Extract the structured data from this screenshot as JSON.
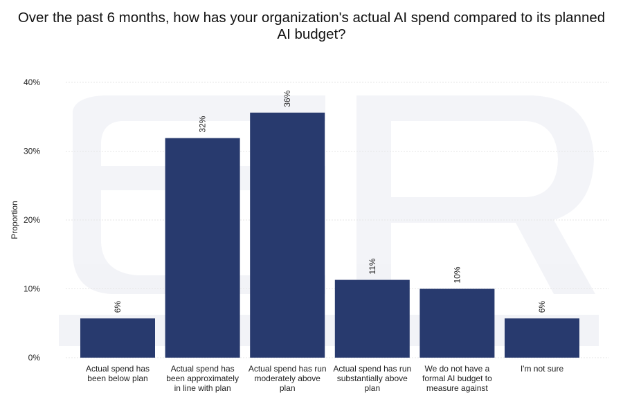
{
  "title_lines": [
    "Over the past 6 months, how has your organization's actual AI spend compared to its planned",
    "AI budget?"
  ],
  "chart_data": {
    "type": "bar",
    "categories": [
      [
        "Actual spend has",
        "been below plan"
      ],
      [
        "Actual spend has",
        "been approximately",
        "in line with plan"
      ],
      [
        "Actual spend has run",
        "moderately above",
        "plan"
      ],
      [
        "Actual spend has run",
        "substantially above",
        "plan"
      ],
      [
        "We do not have a",
        "formal AI budget to",
        "measure against"
      ],
      [
        "I'm not sure"
      ]
    ],
    "values": [
      5.7,
      31.9,
      35.6,
      11.3,
      10.0,
      5.7
    ],
    "data_labels": [
      "6%",
      "32%",
      "36%",
      "11%",
      "10%",
      "6%"
    ],
    "ylabel": "Proportion",
    "ylim": [
      0,
      40
    ],
    "yticks": [
      0,
      10,
      20,
      30,
      40
    ],
    "ytick_labels": [
      "0%",
      "10%",
      "20%",
      "30%",
      "40%"
    ],
    "bar_color": "#283a6e",
    "grid": true,
    "grid_color": "#e6e6e6"
  }
}
